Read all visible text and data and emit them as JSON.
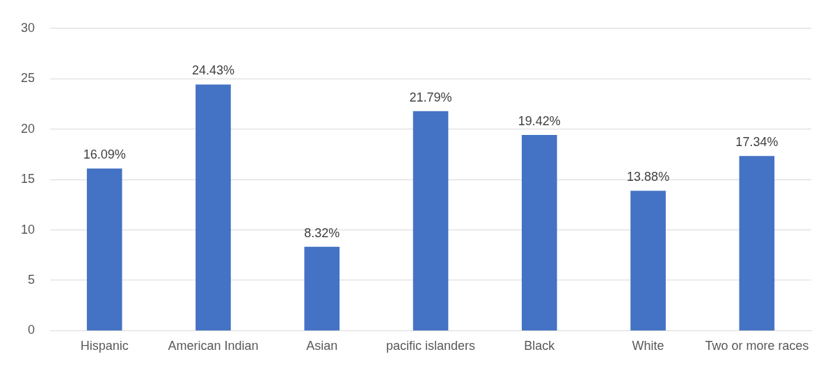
{
  "chart_data": {
    "type": "bar",
    "categories": [
      "Hispanic",
      "American Indian",
      "Asian",
      "pacific islanders",
      "Black",
      "White",
      "Two or more races"
    ],
    "values": [
      16.09,
      24.43,
      8.32,
      21.79,
      19.42,
      13.88,
      17.34
    ],
    "value_labels": [
      "16.09%",
      "24.43%",
      "8.32%",
      "21.79%",
      "19.42%",
      "13.88%",
      "17.34%"
    ],
    "color": "#4472c4",
    "ylim": [
      0,
      30
    ],
    "yticks": [
      0,
      5,
      10,
      15,
      20,
      25,
      30
    ],
    "grid": "y",
    "legend": false
  }
}
